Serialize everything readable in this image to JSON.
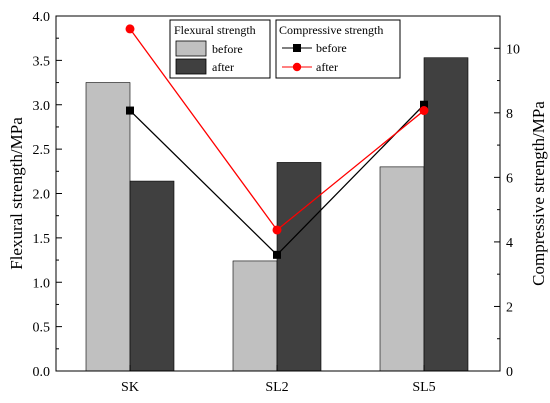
{
  "chart_data": {
    "type": "bar",
    "categories": [
      "SK",
      "SL2",
      "SL5"
    ],
    "left_axis": {
      "label": "Flexural strength/MPa",
      "ylim": [
        0,
        4.0
      ],
      "ticks": [
        "0.0",
        "0.5",
        "1.0",
        "1.5",
        "2.0",
        "2.5",
        "3.0",
        "3.5",
        "4.0"
      ]
    },
    "right_axis": {
      "label": "Compressive strength/MPa",
      "ylim": [
        0,
        11.0
      ],
      "ticks": [
        "0",
        "2",
        "4",
        "6",
        "8",
        "10"
      ]
    },
    "bar_group": {
      "title": "Flexural strength",
      "series": [
        {
          "name": "before",
          "values": [
            3.25,
            1.24,
            2.3
          ],
          "color": "#c0c0c0"
        },
        {
          "name": "after",
          "values": [
            2.14,
            2.35,
            3.53
          ],
          "color": "#404040"
        }
      ]
    },
    "line_group": {
      "title": "Compressive strength",
      "series": [
        {
          "name": "before",
          "values": [
            8.07,
            3.6,
            8.25
          ],
          "color": "#000000",
          "marker": "square"
        },
        {
          "name": "after",
          "values": [
            10.6,
            4.37,
            8.07
          ],
          "color": "#ff0000",
          "marker": "circle"
        }
      ]
    },
    "grid": false,
    "legend_position": "top-center"
  }
}
